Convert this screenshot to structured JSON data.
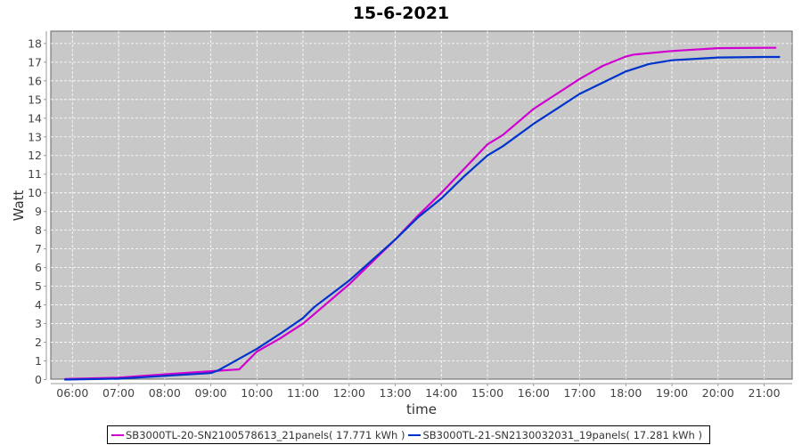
{
  "chart_data": {
    "type": "line",
    "title": "15-6-2021",
    "xlabel": "time",
    "ylabel": "Watt",
    "ylim": [
      0,
      18.5
    ],
    "xlim": [
      "05:32",
      "21:45"
    ],
    "xticks": [
      "06:00",
      "07:00",
      "08:00",
      "09:00",
      "10:00",
      "11:00",
      "12:00",
      "13:00",
      "14:00",
      "15:00",
      "16:00",
      "17:00",
      "18:00",
      "19:00",
      "20:00",
      "21:00"
    ],
    "yticks": [
      0,
      1,
      2,
      3,
      4,
      5,
      6,
      7,
      8,
      9,
      10,
      11,
      12,
      13,
      14,
      15,
      16,
      17,
      18
    ],
    "grid": true,
    "legend_placement": "bottom",
    "series": [
      {
        "name": "SB3000TL-20-SN2100578613_21panels( 17.771 kWh )",
        "color": "#d000d0",
        "x": [
          "05:50",
          "07:00",
          "08:00",
          "09:00",
          "09:37",
          "10:00",
          "10:30",
          "11:00",
          "11:20",
          "12:00",
          "12:30",
          "13:00",
          "13:30",
          "14:00",
          "14:30",
          "15:00",
          "15:20",
          "16:00",
          "16:30",
          "17:00",
          "17:30",
          "18:00",
          "18:10",
          "19:00",
          "20:00",
          "21:00",
          "21:15"
        ],
        "y": [
          0.03,
          0.1,
          0.28,
          0.45,
          0.55,
          1.5,
          2.2,
          3.0,
          3.7,
          5.1,
          6.3,
          7.5,
          8.8,
          10.0,
          11.3,
          12.6,
          13.1,
          14.5,
          15.3,
          16.1,
          16.8,
          17.3,
          17.4,
          17.6,
          17.75,
          17.77,
          17.77
        ]
      },
      {
        "name": "SB3000TL-21-SN2130032031_19panels( 17.281 kWh )",
        "color": "#0033cc",
        "x": [
          "05:50",
          "07:00",
          "08:00",
          "09:00",
          "09:10",
          "10:00",
          "10:30",
          "11:00",
          "11:15",
          "12:00",
          "12:30",
          "13:00",
          "13:30",
          "14:00",
          "14:30",
          "15:00",
          "15:20",
          "16:00",
          "16:30",
          "17:00",
          "17:30",
          "18:00",
          "18:30",
          "19:00",
          "20:00",
          "21:00",
          "21:20"
        ],
        "y": [
          0.0,
          0.05,
          0.2,
          0.35,
          0.5,
          1.65,
          2.45,
          3.3,
          3.9,
          5.3,
          6.4,
          7.5,
          8.7,
          9.7,
          10.9,
          12.0,
          12.5,
          13.7,
          14.5,
          15.3,
          15.9,
          16.5,
          16.9,
          17.1,
          17.25,
          17.28,
          17.28
        ]
      }
    ]
  }
}
